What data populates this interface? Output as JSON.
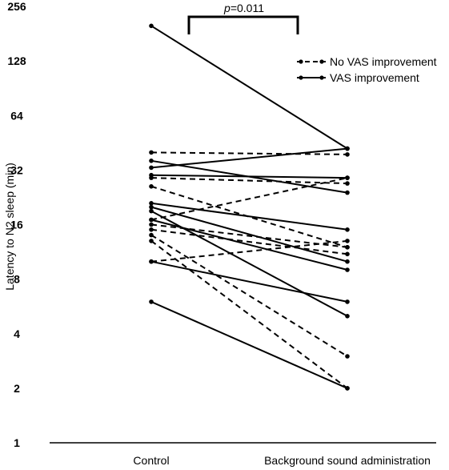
{
  "chart_data": {
    "type": "line",
    "scale": "log2",
    "ylabel": "Latency to N2 sleep (min)",
    "ylim": [
      1,
      256
    ],
    "y_ticks": [
      "1",
      "2",
      "4",
      "8",
      "16",
      "32",
      "64",
      "128",
      "256"
    ],
    "y_tick_values": [
      1,
      2,
      4,
      8,
      16,
      32,
      64,
      128,
      256
    ],
    "categories": [
      "Control",
      "Background sound administration"
    ],
    "grid": false,
    "legend_position": "top-right",
    "legend": [
      {
        "label": "No VAS improvement",
        "style": "dashed"
      },
      {
        "label": "VAS improvement",
        "style": "solid"
      }
    ],
    "annotation": {
      "italic": "p",
      "text": "=0.011"
    },
    "series": [
      {
        "group": "VAS improvement",
        "values": [
          200,
          42
        ]
      },
      {
        "group": "VAS improvement",
        "values": [
          36,
          24
        ]
      },
      {
        "group": "VAS improvement",
        "values": [
          33,
          42
        ]
      },
      {
        "group": "VAS improvement",
        "values": [
          30,
          29
        ]
      },
      {
        "group": "VAS improvement",
        "values": [
          21,
          15
        ]
      },
      {
        "group": "VAS improvement",
        "values": [
          20,
          10
        ]
      },
      {
        "group": "VAS improvement",
        "values": [
          19,
          5
        ]
      },
      {
        "group": "VAS improvement",
        "values": [
          17,
          9
        ]
      },
      {
        "group": "VAS improvement",
        "values": [
          10,
          6
        ]
      },
      {
        "group": "VAS improvement",
        "values": [
          6,
          2
        ]
      },
      {
        "group": "No VAS improvement",
        "values": [
          40,
          39
        ]
      },
      {
        "group": "No VAS improvement",
        "values": [
          29,
          27
        ]
      },
      {
        "group": "No VAS improvement",
        "values": [
          26,
          12
        ]
      },
      {
        "group": "No VAS improvement",
        "values": [
          17,
          29
        ]
      },
      {
        "group": "No VAS improvement",
        "values": [
          16,
          12
        ]
      },
      {
        "group": "No VAS improvement",
        "values": [
          15,
          11
        ]
      },
      {
        "group": "No VAS improvement",
        "values": [
          14,
          3
        ]
      },
      {
        "group": "No VAS improvement",
        "values": [
          13,
          2
        ]
      },
      {
        "group": "No VAS improvement",
        "values": [
          10,
          13
        ]
      }
    ]
  }
}
